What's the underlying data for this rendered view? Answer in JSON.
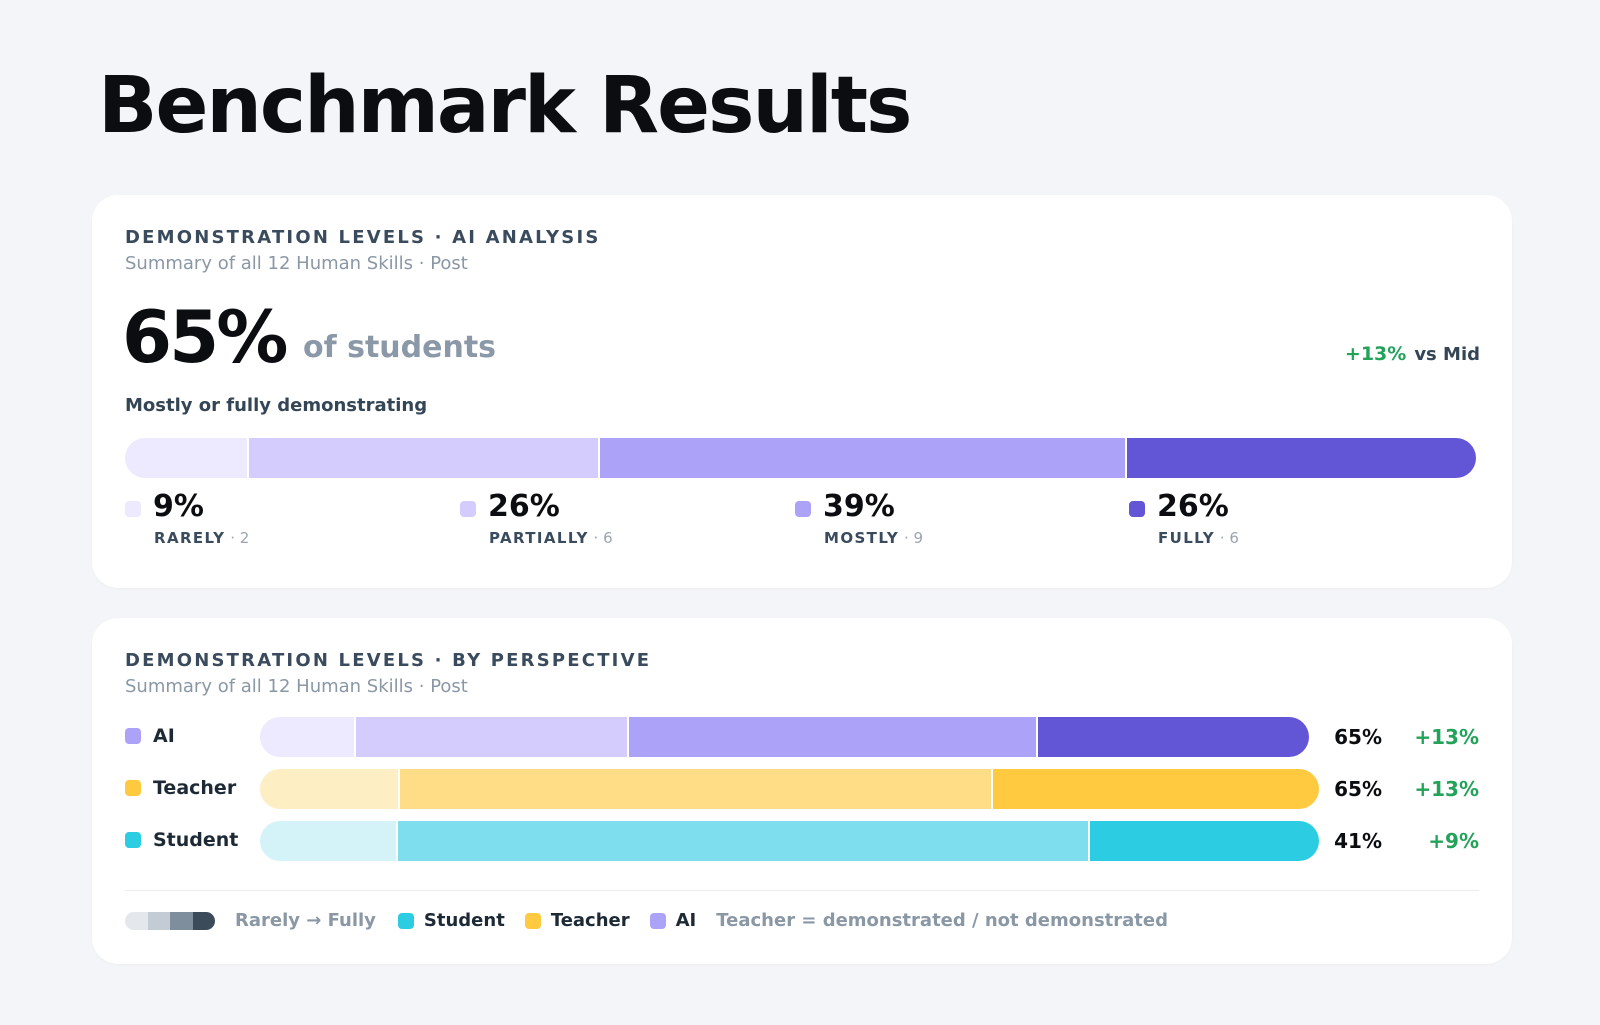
{
  "page_title": "Benchmark Results",
  "card1": {
    "eyebrow": "DEMONSTRATION LEVELS · AI ANALYSIS",
    "subline": "Summary of all 12 Human Skills · Post",
    "headline_value": "65%",
    "headline_unit": "of students",
    "delta": "+13%",
    "delta_ref": "vs Mid",
    "caption": "Mostly or fully demonstrating"
  },
  "card2": {
    "eyebrow": "DEMONSTRATION LEVELS · BY PERSPECTIVE",
    "subline": "Summary of all 12 Human Skills · Post",
    "legend": {
      "ramp_label": "Rarely → Fully",
      "student": "Student",
      "teacher": "Teacher",
      "ai": "AI",
      "note": "Teacher = demonstrated / not demonstrated"
    }
  },
  "colors": {
    "ai": [
      "#ede9fe",
      "#d4ccfc",
      "#aca2f8",
      "#6356d6"
    ],
    "teacher": [
      "#feeec4",
      "#ffdd87",
      "#ffc940"
    ],
    "student": [
      "#d3f3f9",
      "#7fdeee",
      "#2ccde2"
    ],
    "ramp": [
      "#e4e8ec",
      "#c3cbd4",
      "#7e8e9c",
      "#3b4b5a"
    ],
    "swatch_ai": "#aca2f8",
    "swatch_teacher": "#ffc940",
    "swatch_student": "#2ccde2",
    "positive": "#23a25a"
  },
  "chart_data": [
    {
      "type": "bar",
      "orientation": "horizontal-stacked",
      "categories": [
        "RARELY",
        "PARTIALLY",
        "MOSTLY",
        "FULLY"
      ],
      "values": [
        9,
        26,
        39,
        26
      ],
      "value_labels": [
        "9%",
        "26%",
        "39%",
        "26%"
      ],
      "counts": [
        "2",
        "6",
        "9",
        "6"
      ]
    },
    {
      "type": "bar",
      "orientation": "horizontal-stacked",
      "categories": [
        "AI",
        "Teacher",
        "Student"
      ],
      "series": [
        {
          "name": "AI",
          "segments": [
            9,
            26,
            39,
            26
          ],
          "summary": "65%",
          "delta": "+13%"
        },
        {
          "name": "Teacher",
          "segments": [
            13,
            56,
            31
          ],
          "summary": "65%",
          "delta": "+13%"
        },
        {
          "name": "Student",
          "segments": [
            13,
            66,
            22
          ],
          "summary": "41%",
          "delta": "+9%"
        }
      ]
    }
  ]
}
